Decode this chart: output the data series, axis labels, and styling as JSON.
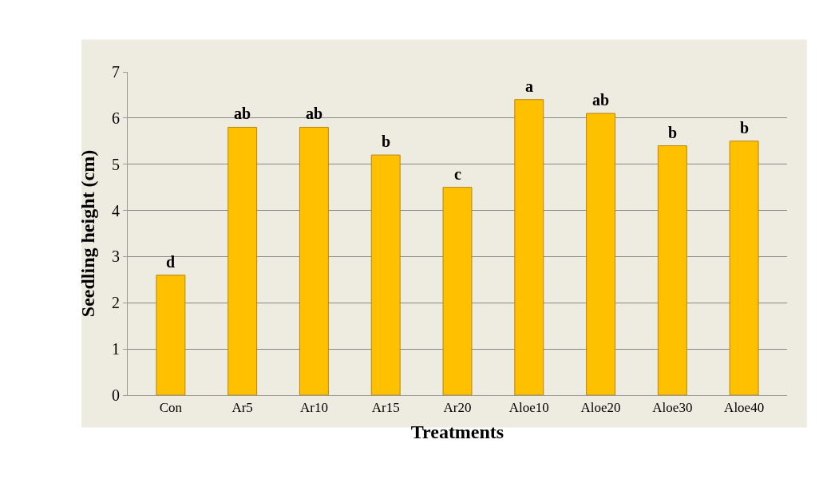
{
  "chart_data": {
    "type": "bar",
    "xlabel": "Treatments",
    "ylabel": "Seedling height (cm)",
    "categories": [
      "Con",
      "Ar5",
      "Ar10",
      "Ar15",
      "Ar20",
      "Aloe10",
      "Aloe20",
      "Aloe30",
      "Aloe40"
    ],
    "values": [
      2.6,
      5.8,
      5.8,
      5.2,
      4.5,
      6.4,
      6.1,
      5.4,
      5.5
    ],
    "color": "#ffc000",
    "ylim": [
      0,
      7
    ],
    "yticks": [
      0,
      1,
      2,
      3,
      4,
      5,
      6,
      7
    ],
    "grid": "y",
    "annotations": [
      {
        "text": "d",
        "x": "Con",
        "y": 2.6
      },
      {
        "text": "ab",
        "x": "Ar5",
        "y": 5.8
      },
      {
        "text": "ab",
        "x": "Ar10",
        "y": 5.8
      },
      {
        "text": "b",
        "x": "Ar15",
        "y": 5.2
      },
      {
        "text": "c",
        "x": "Ar20",
        "y": 4.5
      },
      {
        "text": "a",
        "x": "Aloe10",
        "y": 6.4
      },
      {
        "text": "ab",
        "x": "Aloe20",
        "y": 6.1
      },
      {
        "text": "b",
        "x": "Aloe30",
        "y": 5.4
      },
      {
        "text": "b",
        "x": "Aloe40",
        "y": 5.5
      }
    ]
  }
}
